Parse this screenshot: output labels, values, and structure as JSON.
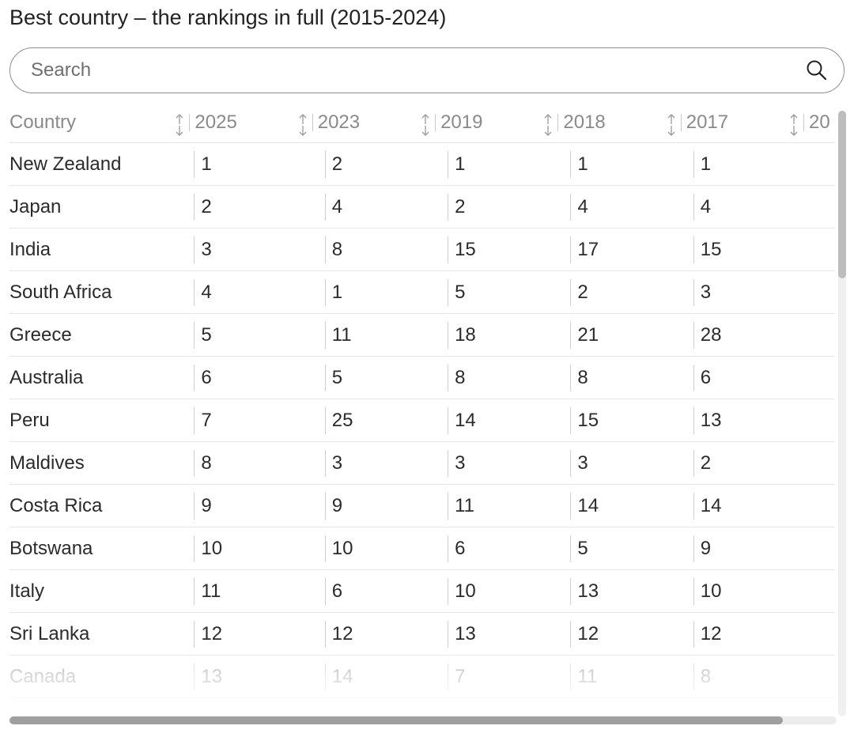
{
  "title": "Best country – the rankings in full (2015-2024)",
  "search": {
    "placeholder": "Search",
    "value": ""
  },
  "table": {
    "headers": [
      "Country",
      "2025",
      "2023",
      "2019",
      "2018",
      "2017",
      "20"
    ],
    "rows": [
      {
        "country": "New Zealand",
        "values": [
          "1",
          "2",
          "1",
          "1",
          "1"
        ]
      },
      {
        "country": "Japan",
        "values": [
          "2",
          "4",
          "2",
          "4",
          "4"
        ]
      },
      {
        "country": "India",
        "values": [
          "3",
          "8",
          "15",
          "17",
          "15"
        ]
      },
      {
        "country": "South Africa",
        "values": [
          "4",
          "1",
          "5",
          "2",
          "3"
        ]
      },
      {
        "country": "Greece",
        "values": [
          "5",
          "11",
          "18",
          "21",
          "28"
        ]
      },
      {
        "country": "Australia",
        "values": [
          "6",
          "5",
          "8",
          "8",
          "6"
        ]
      },
      {
        "country": "Peru",
        "values": [
          "7",
          "25",
          "14",
          "15",
          "13"
        ]
      },
      {
        "country": "Maldives",
        "values": [
          "8",
          "3",
          "3",
          "3",
          "2"
        ]
      },
      {
        "country": "Costa Rica",
        "values": [
          "9",
          "9",
          "11",
          "14",
          "14"
        ]
      },
      {
        "country": "Botswana",
        "values": [
          "10",
          "10",
          "6",
          "5",
          "9"
        ]
      },
      {
        "country": "Italy",
        "values": [
          "11",
          "6",
          "10",
          "13",
          "10"
        ]
      },
      {
        "country": "Sri Lanka",
        "values": [
          "12",
          "12",
          "13",
          "12",
          "12"
        ]
      },
      {
        "country": "Canada",
        "values": [
          "13",
          "14",
          "7",
          "11",
          "8"
        ]
      }
    ]
  },
  "icons": {
    "search": "search-icon",
    "sort": "sort-arrows-icon"
  },
  "colors": {
    "border": "#8e8e8e",
    "header_text": "#8a8a8a",
    "text": "#2b2b2b",
    "scroll_thumb": "#9f9f9f"
  }
}
